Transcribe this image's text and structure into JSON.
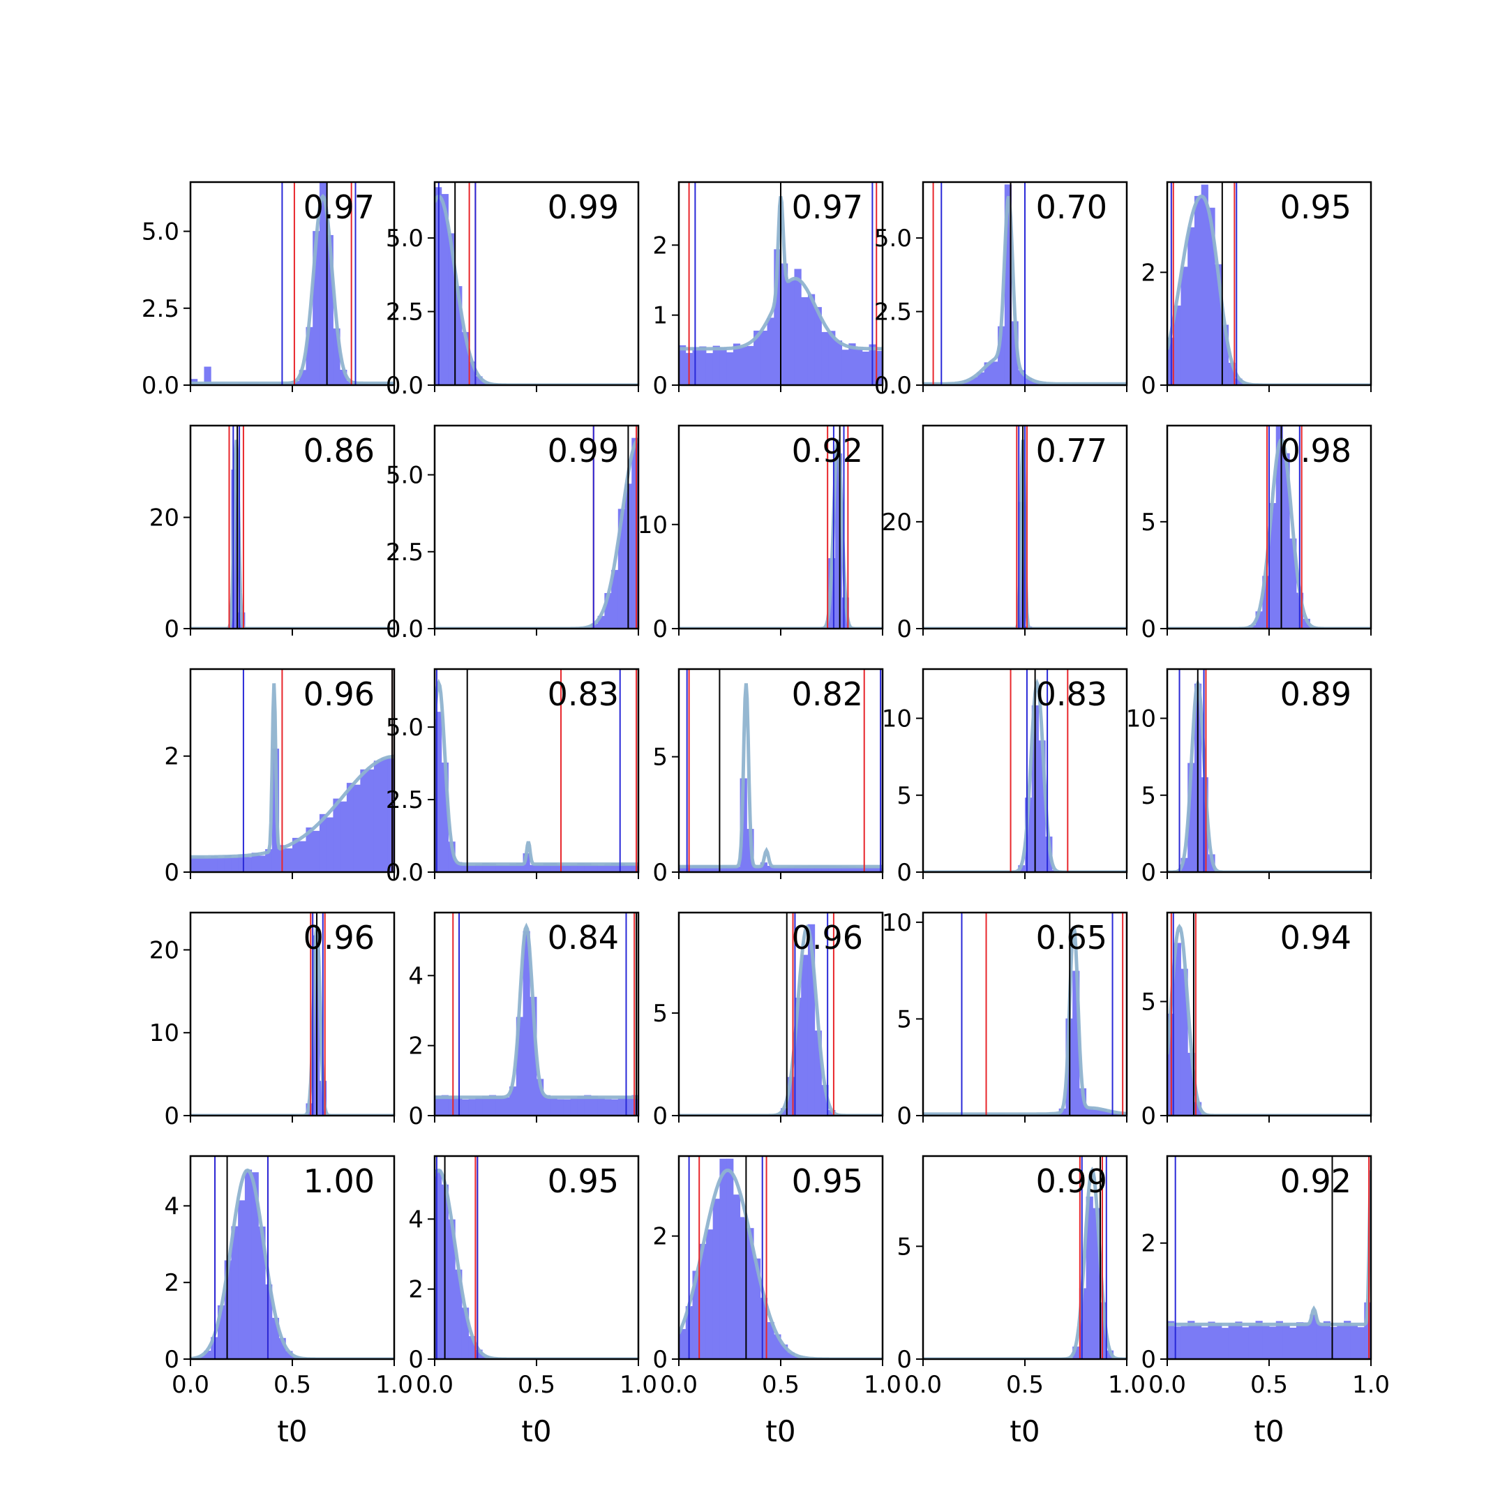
{
  "colors": {
    "histogram": "#7b7bf5",
    "kde": "#8fb3cf",
    "red_line": "#e8262b",
    "blue_line": "#2929d8",
    "black_line": "#000000",
    "frame": "#000000"
  },
  "icons": [],
  "chart_data": {
    "type": "histogram grid",
    "rows": 5,
    "cols": 5,
    "xlim": [
      0,
      1
    ],
    "x_ticks": [
      0.0,
      0.5,
      1.0
    ],
    "x_tick_labels": [
      "0.0",
      "0.5",
      "1.0"
    ],
    "xlabel": "t0",
    "grid": false,
    "legend": "none",
    "panels": [
      {
        "score": "0.97",
        "ymax": 6.6,
        "yticks": [
          0,
          2.5,
          5.0
        ],
        "ytick_labels": [
          "0.0",
          "2.5",
          "5.0"
        ],
        "modes": [
          {
            "mu": 0.65,
            "sd": 0.045,
            "w": 0.92
          }
        ],
        "base": 0.08,
        "noise": 0.15,
        "spikes": [
          [
            0.02,
            0.2
          ],
          [
            0.08,
            0.6
          ]
        ],
        "red": [
          0.51,
          0.79
        ],
        "blue": [
          0.45,
          0.81
        ],
        "black": 0.67
      },
      {
        "score": "0.99",
        "ymax": 6.9,
        "yticks": [
          0,
          2.5,
          5.0
        ],
        "ytick_labels": [
          "0.0",
          "2.5",
          "5.0"
        ],
        "modes": [
          {
            "mu": 0.02,
            "sd": 0.08,
            "w": 1.0
          }
        ],
        "base": 0,
        "noise": 0.1,
        "red": [
          0.17,
          0.2
        ],
        "blue": [
          0.02,
          0.2
        ],
        "black": 0.1
      },
      {
        "score": "0.97",
        "ymax": 2.9,
        "yticks": [
          0,
          1,
          2
        ],
        "ytick_labels": [
          "0",
          "1",
          "2"
        ],
        "modes": [
          {
            "mu": 0.5,
            "sd": 0.012,
            "w": 0.05
          },
          {
            "mu": 0.57,
            "sd": 0.1,
            "w": 0.3
          }
        ],
        "base": 0.62,
        "noise": 0.12,
        "red": [
          0.05,
          0.97
        ],
        "blue": [
          0.08,
          0.95
        ],
        "black": 0.5
      },
      {
        "score": "0.70",
        "ymax": 6.9,
        "yticks": [
          0,
          2.5,
          5.0
        ],
        "ytick_labels": [
          "0.0",
          "2.5",
          "5.0"
        ],
        "modes": [
          {
            "mu": 0.42,
            "sd": 0.02,
            "w": 0.55
          },
          {
            "mu": 0.38,
            "sd": 0.08,
            "w": 0.35
          }
        ],
        "base": 0.08,
        "noise": 0.12,
        "red": [
          0.05,
          0.43
        ],
        "blue": [
          0.09,
          0.5
        ],
        "black": 0.43
      },
      {
        "score": "0.95",
        "ymax": 3.6,
        "yticks": [
          0,
          2
        ],
        "ytick_labels": [
          "0",
          "2"
        ],
        "modes": [
          {
            "mu": 0.14,
            "sd": 0.08,
            "w": 0.7
          },
          {
            "mu": 0.22,
            "sd": 0.05,
            "w": 0.15
          }
        ],
        "base": 0,
        "noise": 0.1,
        "red": [
          0.03,
          0.33
        ],
        "blue": [
          0.02,
          0.34
        ],
        "black": 0.27
      },
      {
        "score": "0.86",
        "ymax": 36.5,
        "yticks": [
          0,
          20
        ],
        "ytick_labels": [
          "0",
          "20"
        ],
        "modes": [
          {
            "mu": 0.225,
            "sd": 0.011,
            "w": 1.0
          }
        ],
        "base": 0,
        "noise": 0.15,
        "red": [
          0.19,
          0.26
        ],
        "blue": [
          0.21,
          0.24
        ],
        "black": 0.23
      },
      {
        "score": "0.99",
        "ymax": 6.6,
        "yticks": [
          0,
          2.5,
          5.0
        ],
        "ytick_labels": [
          "0.0",
          "2.5",
          "5.0"
        ],
        "modes": [
          {
            "mu": 1.0,
            "sd": 0.08,
            "w": 1.0
          }
        ],
        "base": 0,
        "noise": 0.1,
        "red": [
          0.78,
          0.99
        ],
        "blue": [
          0.78,
          1.0
        ],
        "black": 0.95
      },
      {
        "score": "0.92",
        "ymax": 19.5,
        "yticks": [
          0,
          10
        ],
        "ytick_labels": [
          "0",
          "10"
        ],
        "modes": [
          {
            "mu": 0.78,
            "sd": 0.02,
            "w": 1.0
          }
        ],
        "base": 0,
        "noise": 0.15,
        "red": [
          0.73,
          0.83
        ],
        "blue": [
          0.76,
          0.81
        ],
        "black": 0.79
      },
      {
        "score": "0.77",
        "ymax": 38,
        "yticks": [
          0,
          20
        ],
        "ytick_labels": [
          "0",
          "20"
        ],
        "modes": [
          {
            "mu": 0.49,
            "sd": 0.009,
            "w": 1.0
          }
        ],
        "base": 0,
        "noise": 0.15,
        "red": [
          0.46,
          0.51
        ],
        "blue": [
          0.47,
          0.5
        ],
        "black": 0.49
      },
      {
        "score": "0.98",
        "ymax": 9.5,
        "yticks": [
          0,
          5
        ],
        "ytick_labels": [
          "0",
          "5"
        ],
        "modes": [
          {
            "mu": 0.56,
            "sd": 0.05,
            "w": 1.0
          }
        ],
        "base": 0,
        "noise": 0.1,
        "red": [
          0.49,
          0.66
        ],
        "blue": [
          0.5,
          0.65
        ],
        "black": 0.56
      },
      {
        "score": "0.96",
        "ymax": 3.5,
        "yticks": [
          0,
          2
        ],
        "ytick_labels": [
          "0",
          "2"
        ],
        "modes": [
          {
            "mu": 1.0,
            "sd": 0.25,
            "w": 0.75
          },
          {
            "mu": 0.41,
            "sd": 0.008,
            "w": 0.04
          }
        ],
        "base": 0.18,
        "noise": 0.12,
        "red": [
          0.45,
          0.99
        ],
        "blue": [
          0.26,
          1.0
        ],
        "black": 0.99
      },
      {
        "score": "0.83",
        "ymax": 7.0,
        "yticks": [
          0,
          2.5,
          5.0
        ],
        "ytick_labels": [
          "0.0",
          "2.5",
          "5.0"
        ],
        "modes": [
          {
            "mu": 0.02,
            "sd": 0.03,
            "w": 0.6
          },
          {
            "mu": 0.46,
            "sd": 0.008,
            "w": 0.02
          }
        ],
        "base": 0.35,
        "noise": 0.15,
        "red": [
          0.62,
          0.99
        ],
        "blue": [
          0.01,
          0.91
        ],
        "black": 0.16
      },
      {
        "score": "0.82",
        "ymax": 8.8,
        "yticks": [
          0,
          5
        ],
        "ytick_labels": [
          "0",
          "5"
        ],
        "modes": [
          {
            "mu": 0.33,
            "sd": 0.012,
            "w": 0.55
          },
          {
            "mu": 0.43,
            "sd": 0.01,
            "w": 0.04
          }
        ],
        "base": 0.55,
        "noise": 0.2,
        "red": [
          0.05,
          0.91
        ],
        "blue": [
          0.04,
          0.99
        ],
        "black": 0.2
      },
      {
        "score": "0.83",
        "ymax": 13.2,
        "yticks": [
          0,
          5,
          10
        ],
        "ytick_labels": [
          "0",
          "5",
          "10"
        ],
        "modes": [
          {
            "mu": 0.56,
            "sd": 0.03,
            "w": 1.0
          }
        ],
        "base": 0,
        "noise": 0.12,
        "red": [
          0.43,
          0.71
        ],
        "blue": [
          0.51,
          0.61
        ],
        "black": 0.55
      },
      {
        "score": "0.89",
        "ymax": 13.2,
        "yticks": [
          0,
          5,
          10
        ],
        "ytick_labels": [
          "0",
          "5",
          "10"
        ],
        "modes": [
          {
            "mu": 0.15,
            "sd": 0.03,
            "w": 1.0
          }
        ],
        "base": 0,
        "noise": 0.12,
        "red": [
          0.06,
          0.19
        ],
        "blue": [
          0.06,
          0.18
        ],
        "black": 0.15
      },
      {
        "score": "0.96",
        "ymax": 24.5,
        "yticks": [
          0,
          10,
          20
        ],
        "ytick_labels": [
          "0",
          "10",
          "20"
        ],
        "modes": [
          {
            "mu": 0.62,
            "sd": 0.016,
            "w": 1.0
          }
        ],
        "base": 0,
        "noise": 0.12,
        "red": [
          0.59,
          0.66
        ],
        "blue": [
          0.6,
          0.65
        ],
        "black": 0.62
      },
      {
        "score": "0.84",
        "ymax": 5.8,
        "yticks": [
          0,
          2,
          4
        ],
        "ytick_labels": [
          "0",
          "2",
          "4"
        ],
        "modes": [
          {
            "mu": 0.45,
            "sd": 0.03,
            "w": 0.35
          }
        ],
        "base": 0.5,
        "noise": 0.12,
        "red": [
          0.09,
          0.98
        ],
        "blue": [
          0.12,
          0.94
        ],
        "black": 0.99
      },
      {
        "score": "0.96",
        "ymax": 9.9,
        "yticks": [
          0,
          5
        ],
        "ytick_labels": [
          "0",
          "5"
        ],
        "modes": [
          {
            "mu": 0.63,
            "sd": 0.045,
            "w": 1.0
          }
        ],
        "base": 0,
        "noise": 0.12,
        "red": [
          0.56,
          0.76
        ],
        "blue": [
          0.57,
          0.73
        ],
        "black": 0.53
      },
      {
        "score": "0.65",
        "ymax": 10.5,
        "yticks": [
          0,
          5,
          10
        ],
        "ytick_labels": [
          "0",
          "5",
          "10"
        ],
        "modes": [
          {
            "mu": 0.74,
            "sd": 0.02,
            "w": 0.75
          },
          {
            "mu": 0.82,
            "sd": 0.08,
            "w": 0.1
          }
        ],
        "base": 0.12,
        "noise": 0.15,
        "red": [
          0.31,
          0.98
        ],
        "blue": [
          0.19,
          0.93
        ],
        "black": 0.72
      },
      {
        "score": "0.94",
        "ymax": 8.9,
        "yticks": [
          0,
          5
        ],
        "ytick_labels": [
          "0",
          "5"
        ],
        "modes": [
          {
            "mu": 0.06,
            "sd": 0.04,
            "w": 1.0
          }
        ],
        "base": 0,
        "noise": 0.1,
        "red": [
          0.02,
          0.14
        ],
        "blue": [
          0.03,
          0.13
        ],
        "black": 0.13
      },
      {
        "score": "1.00",
        "ymax": 5.3,
        "yticks": [
          0,
          2,
          4
        ],
        "ytick_labels": [
          "0",
          "2",
          "4"
        ],
        "modes": [
          {
            "mu": 0.28,
            "sd": 0.08,
            "w": 1.0
          }
        ],
        "base": 0,
        "noise": 0.1,
        "red": [
          0.12,
          0.38
        ],
        "blue": [
          0.12,
          0.38
        ],
        "black": 0.18
      },
      {
        "score": "0.95",
        "ymax": 5.8,
        "yticks": [
          0,
          2,
          4
        ],
        "ytick_labels": [
          "0",
          "2",
          "4"
        ],
        "modes": [
          {
            "mu": 0.02,
            "sd": 0.08,
            "w": 0.95
          }
        ],
        "base": 0,
        "noise": 0.1,
        "red": [
          0.2,
          0.21
        ],
        "blue": [
          0.01,
          0.21
        ],
        "black": 0.05
      },
      {
        "score": "0.95",
        "ymax": 3.3,
        "yticks": [
          0,
          2
        ],
        "ytick_labels": [
          "0",
          "2"
        ],
        "modes": [
          {
            "mu": 0.24,
            "sd": 0.12,
            "w": 1.0
          }
        ],
        "base": 0,
        "noise": 0.1,
        "red": [
          0.1,
          0.43
        ],
        "blue": [
          0.05,
          0.41
        ],
        "black": 0.33
      },
      {
        "score": "0.99",
        "ymax": 9.0,
        "yticks": [
          0,
          5
        ],
        "ytick_labels": [
          "0",
          "5"
        ],
        "modes": [
          {
            "mu": 0.83,
            "sd": 0.035,
            "w": 1.0
          }
        ],
        "base": 0,
        "noise": 0.1,
        "red": [
          0.77,
          0.88
        ],
        "blue": [
          0.78,
          0.9
        ],
        "black": 0.87
      },
      {
        "score": "0.92",
        "ymax": 3.5,
        "yticks": [
          0,
          2
        ],
        "ytick_labels": [
          "0",
          "2"
        ],
        "modes": [
          {
            "mu": 1.0,
            "sd": 0.008,
            "w": 0.08
          },
          {
            "mu": 0.72,
            "sd": 0.01,
            "w": 0.01
          }
        ],
        "base": 0.9,
        "noise": 0.1,
        "red": [
          0.99,
          1.0
        ],
        "blue": [
          0.04,
          1.0
        ],
        "black": 0.81
      }
    ]
  }
}
